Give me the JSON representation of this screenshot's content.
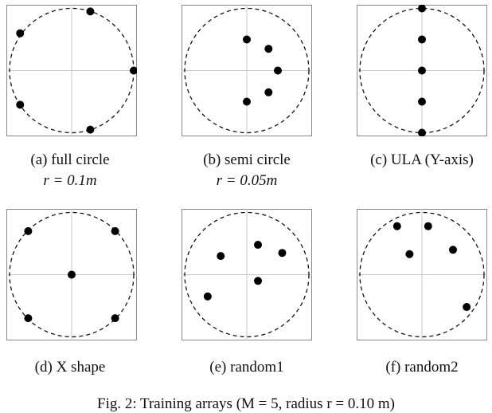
{
  "panels": [
    {
      "caption": "(a) full circle",
      "radius_text": "r = 0.1m",
      "points": [
        [
          0.3,
          0.95
        ],
        [
          -0.83,
          0.6
        ],
        [
          1.0,
          0.0
        ],
        [
          -0.83,
          -0.55
        ],
        [
          0.3,
          -0.95
        ]
      ]
    },
    {
      "caption": "(b) semi circle",
      "radius_text": "r = 0.05m",
      "points": [
        [
          0.0,
          0.5
        ],
        [
          0.35,
          0.35
        ],
        [
          0.5,
          0.0
        ],
        [
          0.35,
          -0.35
        ],
        [
          0.0,
          -0.5
        ]
      ]
    },
    {
      "caption": "(c) ULA (Y-axis)",
      "radius_text": "",
      "points": [
        [
          0.0,
          1.0
        ],
        [
          0.0,
          0.5
        ],
        [
          0.0,
          0.0
        ],
        [
          0.0,
          -0.5
        ],
        [
          0.0,
          -1.0
        ]
      ]
    },
    {
      "caption": "(d) X shape",
      "radius_text": "",
      "points": [
        [
          -0.7,
          0.7
        ],
        [
          0.7,
          0.7
        ],
        [
          0.0,
          0.0
        ],
        [
          -0.7,
          -0.7
        ],
        [
          0.7,
          -0.7
        ]
      ]
    },
    {
      "caption": "(e) random1",
      "radius_text": "",
      "points": [
        [
          0.18,
          0.48
        ],
        [
          -0.42,
          0.3
        ],
        [
          0.57,
          0.35
        ],
        [
          0.18,
          -0.1
        ],
        [
          -0.63,
          -0.35
        ]
      ]
    },
    {
      "caption": "(f) random2",
      "radius_text": "",
      "points": [
        [
          -0.4,
          0.78
        ],
        [
          0.1,
          0.78
        ],
        [
          0.5,
          0.4
        ],
        [
          -0.2,
          0.33
        ],
        [
          0.72,
          -0.52
        ]
      ]
    }
  ],
  "figure_caption": "Fig. 2: Training arrays (M = 5, radius r = 0.10 m)"
}
